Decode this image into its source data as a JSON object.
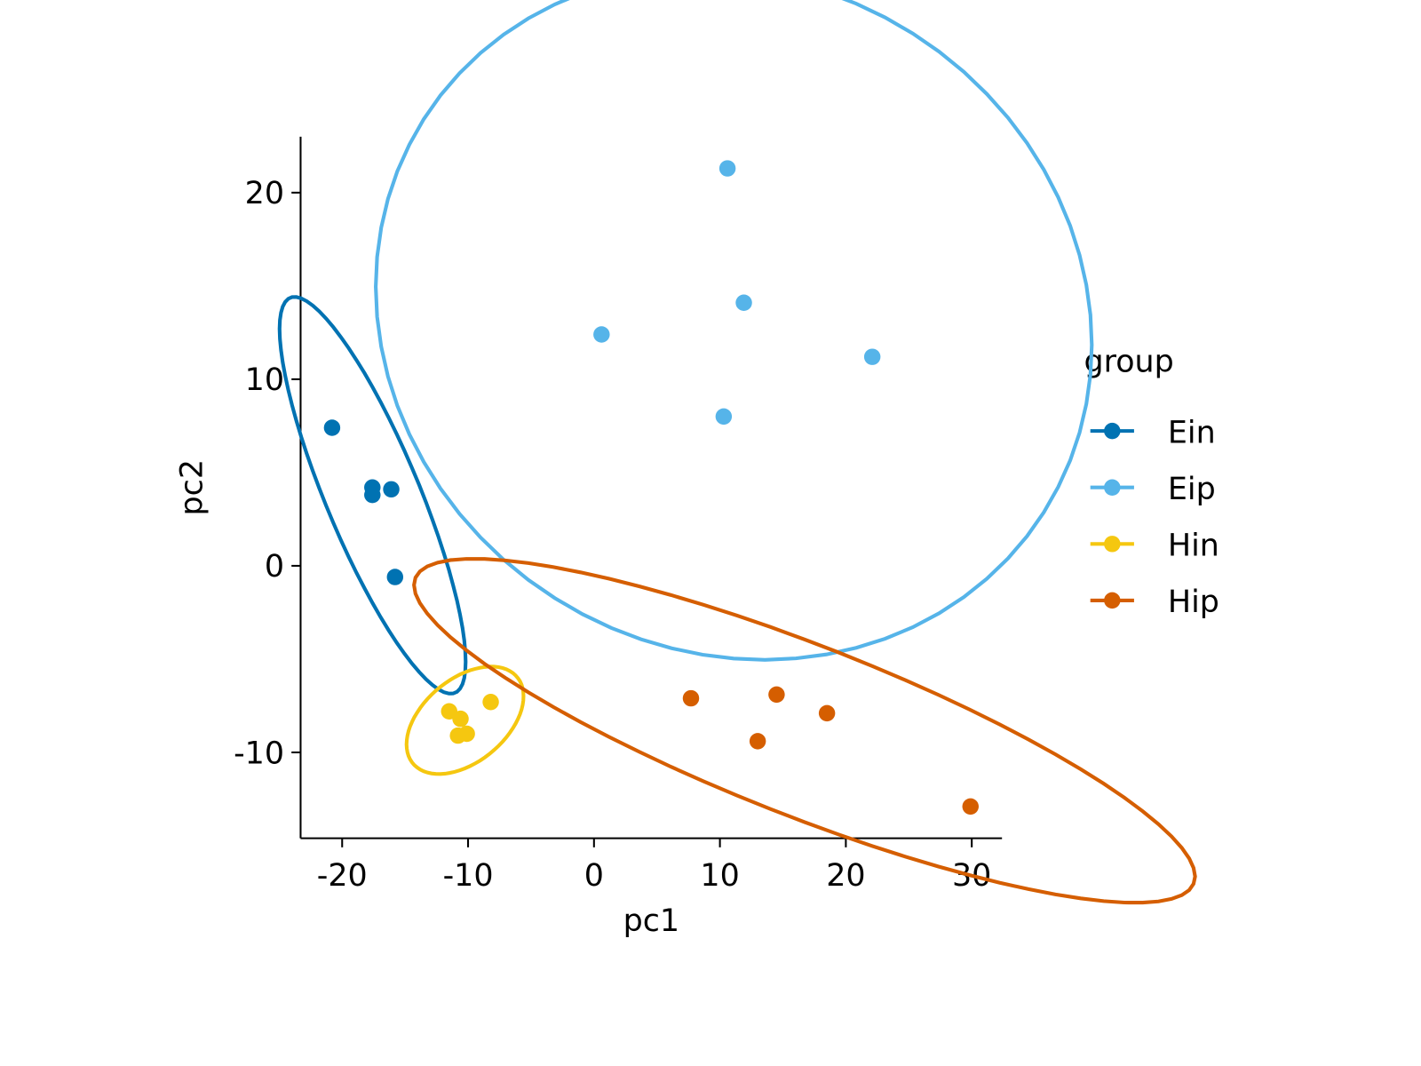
{
  "chart_data": {
    "type": "scatter",
    "xlabel": "pc1",
    "ylabel": "pc2",
    "xlim": [
      -23.3,
      32.4
    ],
    "ylim": [
      -14.6,
      23.0
    ],
    "xticks": [
      -20,
      -10,
      0,
      10,
      20,
      30
    ],
    "yticks": [
      -10,
      0,
      10,
      20
    ],
    "legend_title": "group",
    "legend": "right",
    "ellipse_level": 0.95,
    "series": [
      {
        "name": "Ein",
        "color": "#0072B2",
        "x": [
          -20.8,
          -17.6,
          -17.6,
          -16.1,
          -15.8
        ],
        "y": [
          7.4,
          4.2,
          3.8,
          4.1,
          -0.6
        ]
      },
      {
        "name": "Eip",
        "color": "#56B4E9",
        "x": [
          10.6,
          11.9,
          0.6,
          22.1,
          10.3
        ],
        "y": [
          21.3,
          14.1,
          12.4,
          11.2,
          8.0
        ]
      },
      {
        "name": "Hin",
        "color": "#F5C710",
        "x": [
          -8.2,
          -11.5,
          -10.6,
          -10.8,
          -10.1
        ],
        "y": [
          -7.3,
          -7.8,
          -8.2,
          -9.1,
          -9.0
        ]
      },
      {
        "name": "Hip",
        "color": "#D55E00",
        "x": [
          7.7,
          14.5,
          18.5,
          13.0,
          29.9
        ],
        "y": [
          -7.1,
          -6.9,
          -7.9,
          -9.4,
          -12.9
        ]
      }
    ]
  }
}
